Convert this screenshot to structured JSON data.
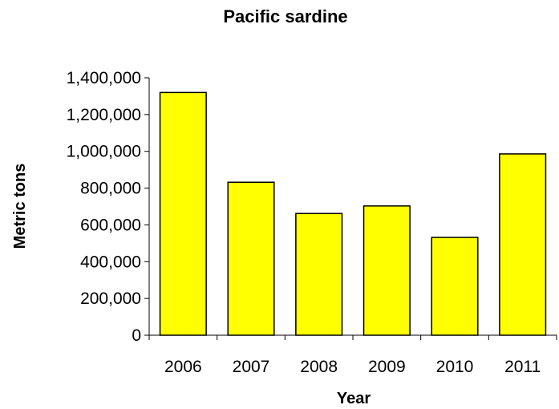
{
  "chart_data": {
    "type": "bar",
    "title": "Pacific sardine",
    "xlabel": "Year",
    "ylabel": "Metric tons",
    "categories": [
      "2006",
      "2007",
      "2008",
      "2009",
      "2010",
      "2011"
    ],
    "values": [
      1320000,
      832000,
      662000,
      703000,
      532000,
      986000
    ],
    "ylim": [
      0,
      1400000
    ],
    "yticks": [
      0,
      200000,
      400000,
      600000,
      800000,
      1000000,
      1200000,
      1400000
    ],
    "ytick_labels": [
      "0",
      "200,000",
      "400,000",
      "600,000",
      "800,000",
      "1,000,000",
      "1,200,000",
      "1,400,000"
    ],
    "bar_color": "#ffff00",
    "bar_edge_color": "#000000",
    "grid": false,
    "legend": "none"
  }
}
